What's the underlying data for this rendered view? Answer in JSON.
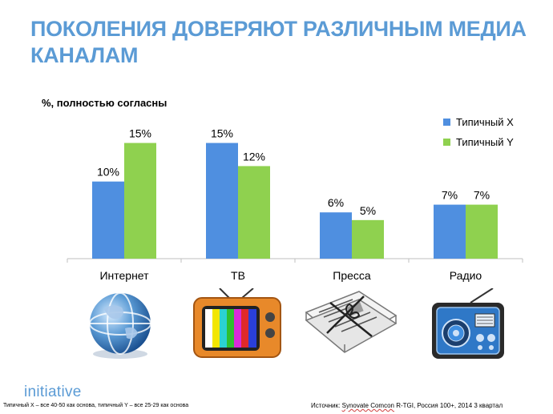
{
  "title": "ПОКОЛЕНИЯ ДОВЕРЯЮТ РАЗЛИЧНЫМ МЕДИА КАНАЛАМ",
  "chart_data": {
    "type": "bar",
    "ylabel": "%, полностью согласны",
    "categories": [
      "Интернет",
      "ТВ",
      "Пресса",
      "Радио"
    ],
    "series": [
      {
        "name": "Типичный X",
        "values": [
          10,
          15,
          6,
          7
        ],
        "labels": [
          "10%",
          "15%",
          "6%",
          "7%"
        ],
        "color": "#4f8fe0"
      },
      {
        "name": "Типичный Y",
        "values": [
          15,
          12,
          5,
          7
        ],
        "labels": [
          "15%",
          "12%",
          "5%",
          "7%"
        ],
        "color": "#8fd14f"
      }
    ],
    "ylim": [
      0,
      19
    ],
    "grid": false,
    "legend": "top-right"
  },
  "icons": [
    "globe-icon",
    "tv-icon",
    "newspaper-icon",
    "radio-icon"
  ],
  "logo": "initiative",
  "footer": {
    "note": "Типичный X – все 40-50 как основа, типичный Y – все 25-29 как основа",
    "source_prefix": "Источник: ",
    "source_name": "Synovate Comcon",
    "source_rest": " R-TGI, Россия 100+, 2014 3 квартал"
  }
}
